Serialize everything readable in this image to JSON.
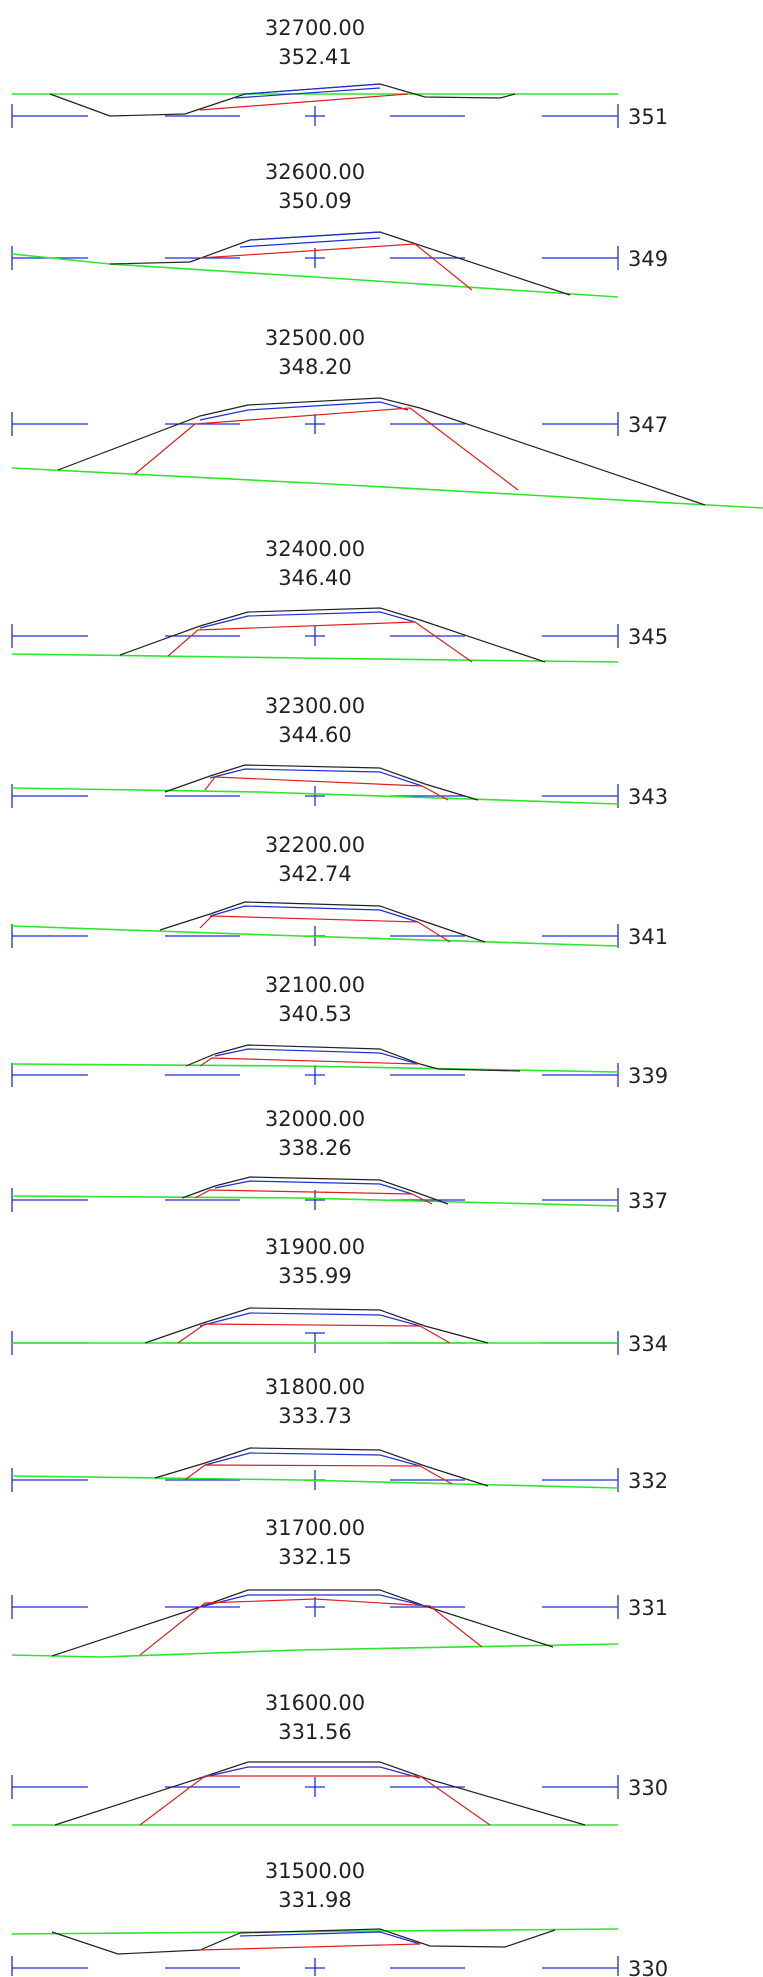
{
  "drawing": {
    "colors": {
      "background": "#ffffff",
      "text": "#222222",
      "axis": "#1e2fd6",
      "ground": "#2ee62e",
      "slope": "#222222",
      "subgrade": "#e02020"
    },
    "sections": [
      {
        "station": "32700.00",
        "elevation": "352.41",
        "datum": "351"
      },
      {
        "station": "32600.00",
        "elevation": "350.09",
        "datum": "349"
      },
      {
        "station": "32500.00",
        "elevation": "348.20",
        "datum": "347"
      },
      {
        "station": "32400.00",
        "elevation": "346.40",
        "datum": "345"
      },
      {
        "station": "32300.00",
        "elevation": "344.60",
        "datum": "343"
      },
      {
        "station": "32200.00",
        "elevation": "342.74",
        "datum": "341"
      },
      {
        "station": "32100.00",
        "elevation": "340.53",
        "datum": "339"
      },
      {
        "station": "32000.00",
        "elevation": "338.26",
        "datum": "337"
      },
      {
        "station": "31900.00",
        "elevation": "335.99",
        "datum": "334"
      },
      {
        "station": "31800.00",
        "elevation": "333.73",
        "datum": "332"
      },
      {
        "station": "31700.00",
        "elevation": "332.15",
        "datum": "331"
      },
      {
        "station": "31600.00",
        "elevation": "331.56",
        "datum": "330"
      },
      {
        "station": "31500.00",
        "elevation": "331.98",
        "datum": "330"
      }
    ]
  }
}
